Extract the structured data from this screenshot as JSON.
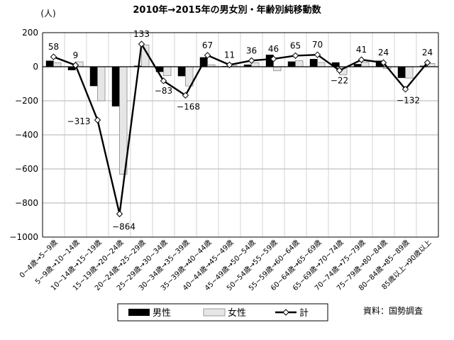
{
  "chart_data": {
    "type": "bar",
    "title": "2010年→2015年の男女別・年齢別純移動数",
    "ylabel": "(人)",
    "ylim": [
      -1000,
      200
    ],
    "yticks": [
      200,
      0,
      -200,
      -400,
      -600,
      -800,
      -1000
    ],
    "grid": true,
    "categories": [
      "0~4歳→5~9歳",
      "5~9歳→10~14歳",
      "10~14歳→15~19歳",
      "15~19歳→20~24歳",
      "20~24歳→25~29歳",
      "25~29歳→30~34歳",
      "30~34歳→35~39歳",
      "35~39歳→40~44歳",
      "40~44歳→45~49歳",
      "45~49歳→50~54歳",
      "50~54歳→55~59歳",
      "55~59歳→60~64歳",
      "60~64歳→65~69歳",
      "65~69歳→70~74歳",
      "70~74歳→75~79歳",
      "75~79歳→80~84歳",
      "80~84歳→85~89歳",
      "85歳以上→90歳以上"
    ],
    "series": [
      {
        "name": "男性",
        "type": "bar",
        "color": "#000000",
        "values": [
          35,
          -20,
          -113,
          -232,
          5,
          -30,
          -55,
          55,
          3,
          12,
          70,
          30,
          45,
          25,
          15,
          35,
          -65,
          5
        ]
      },
      {
        "name": "女性",
        "type": "bar",
        "color": "#e6e6e6",
        "values": [
          23,
          29,
          -200,
          -632,
          128,
          -53,
          -113,
          12,
          8,
          24,
          -24,
          35,
          25,
          -47,
          26,
          -11,
          -67,
          19
        ]
      },
      {
        "name": "計",
        "type": "line",
        "color": "#000000",
        "values": [
          58,
          9,
          -313,
          -864,
          133,
          -83,
          -168,
          67,
          11,
          36,
          46,
          65,
          70,
          -22,
          41,
          24,
          -132,
          24
        ],
        "labels": [
          "58",
          "9",
          "-313",
          "-864",
          "133",
          "-83",
          "-168",
          "67",
          "11",
          "36",
          "46",
          "65",
          "70",
          "-22",
          "41",
          "24",
          "-132",
          "24"
        ]
      }
    ],
    "legend_position": "bottom",
    "source": "資料：国勢調査"
  }
}
